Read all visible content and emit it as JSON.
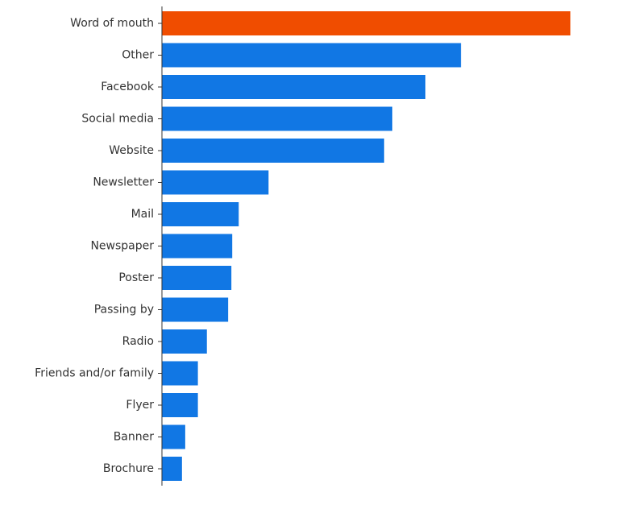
{
  "chart_data": {
    "type": "bar",
    "orientation": "horizontal",
    "categories": [
      "Word of mouth",
      "Other",
      "Facebook",
      "Social media",
      "Website",
      "Newsletter",
      "Mail",
      "Newspaper",
      "Poster",
      "Passing by",
      "Radio",
      "Friends and/or family",
      "Flyer",
      "Banner",
      "Brochure"
    ],
    "values": [
      100,
      73.2,
      64.5,
      56.4,
      54.4,
      26.1,
      18.8,
      17.2,
      17.0,
      16.2,
      11.0,
      8.8,
      8.8,
      5.7,
      4.9
    ],
    "xlim": [
      0,
      100
    ],
    "highlight_index": 0,
    "colors": {
      "default": "#1177e4",
      "highlight": "#f04d00"
    },
    "title": "",
    "xlabel": "",
    "ylabel": "",
    "grid": false,
    "legend": false
  }
}
